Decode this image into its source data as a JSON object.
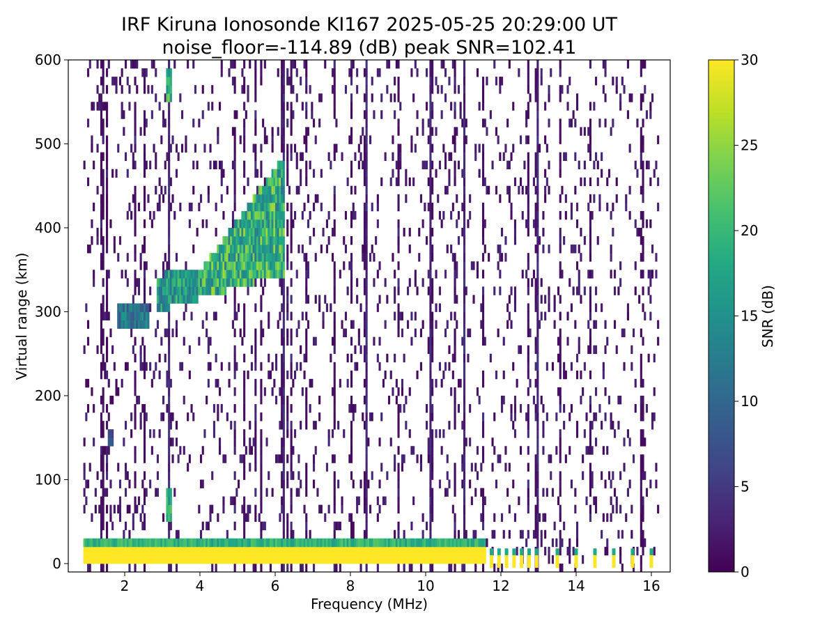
{
  "chart_data": {
    "type": "heatmap",
    "title_line1": "IRF Kiruna Ionosonde KI167 2025-05-25 20:29:00  UT",
    "title_line2": "noise_floor=-114.89 (dB) peak SNR=102.41",
    "xlabel": "Frequency (MHz)",
    "ylabel": "Virtual range (km)",
    "xlim": [
      0.5,
      16.5
    ],
    "ylim": [
      -10,
      600
    ],
    "xticks": [
      2,
      4,
      6,
      8,
      10,
      12,
      14,
      16
    ],
    "yticks": [
      0,
      100,
      200,
      300,
      400,
      500,
      600
    ],
    "grid": false,
    "data_freq_range_mhz": [
      0.9,
      16.2
    ],
    "colorbar": {
      "label": "SNR (dB)",
      "range": [
        0,
        30
      ],
      "ticks": [
        0,
        5,
        10,
        15,
        20,
        25,
        30
      ],
      "colormap": "viridis"
    },
    "ground_echo": {
      "range_km": [
        -5,
        10
      ],
      "snr_db": 30,
      "freq_mhz": [
        0.9,
        11.6
      ]
    },
    "ground_echo_pulses_mhz": [
      11.75,
      11.95,
      12.15,
      12.35,
      12.55,
      12.75,
      12.95,
      13.5,
      14.0,
      14.5,
      15.0,
      15.5,
      16.0
    ],
    "trace_segments": [
      {
        "name": "low-F segment",
        "freq_mhz": [
          1.8,
          2.6
        ],
        "range_km": [
          275,
          300
        ],
        "snr_db": 16
      },
      {
        "name": "F-trace lower",
        "freq_mhz": [
          2.8,
          4.0
        ],
        "range_km": [
          295,
          345
        ],
        "snr_db": 22
      },
      {
        "name": "F-trace main",
        "freq_mhz": [
          4.0,
          6.2
        ],
        "range_km": [
          300,
          480
        ],
        "snr_db": 26
      }
    ],
    "isolated_echoes": [
      {
        "freq_mhz": 3.15,
        "range_km": [
          45,
          85
        ],
        "snr_db": 24
      },
      {
        "freq_mhz": 3.15,
        "range_km": [
          545,
          585
        ],
        "snr_db": 24
      },
      {
        "freq_mhz": 1.6,
        "range_km": [
          137,
          157
        ],
        "snr_db": 9
      }
    ],
    "interference_lines_mhz": [
      3.15,
      6.2,
      8.4,
      10.1,
      11.0,
      12.95
    ]
  }
}
